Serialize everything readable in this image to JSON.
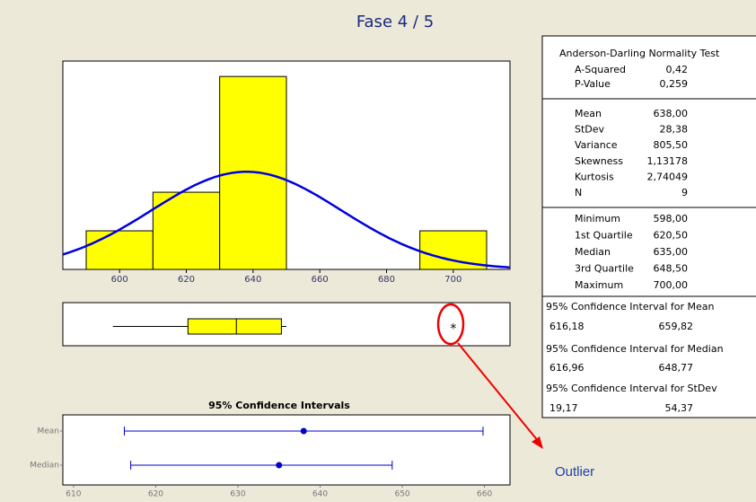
{
  "title": "Fase 4 / 5",
  "annotation": "Outlier",
  "chart_data": [
    {
      "type": "histogram",
      "bins": [
        590,
        610,
        630,
        650,
        670,
        690,
        710
      ],
      "counts": [
        1,
        2,
        5,
        0,
        0,
        1
      ],
      "color": "#ffff00",
      "xlim": [
        583,
        717
      ],
      "ylim": [
        0,
        5.4
      ],
      "xticks": [
        600,
        620,
        640,
        660,
        680,
        700
      ],
      "fit": {
        "mean": 638,
        "stdev": 28.38,
        "color": "#0000dd"
      }
    },
    {
      "type": "boxplot",
      "xlim": [
        583,
        717
      ],
      "whiskers": [
        598,
        650
      ],
      "q1": 620.5,
      "median": 635,
      "q3": 648.5,
      "outliers": [
        700
      ],
      "color": "#ffff00"
    },
    {
      "type": "interval",
      "title": "95% Confidence Intervals",
      "categories": [
        "Mean",
        "Median"
      ],
      "center": [
        638,
        635
      ],
      "low": [
        616.18,
        616.96
      ],
      "high": [
        659.82,
        648.77
      ],
      "color": "#0000cc",
      "xlim": [
        608.7,
        663.1
      ],
      "xticks": [
        610,
        620,
        630,
        640,
        650,
        660
      ]
    }
  ],
  "summary_table": {
    "header": "Anderson-Darling Normality Test",
    "sections": [
      {
        "rows": [
          [
            "A-Squared",
            "0,42"
          ],
          [
            "P-Value",
            "0,259"
          ]
        ]
      },
      {
        "rows": [
          [
            "Mean",
            "638,00"
          ],
          [
            "StDev",
            "28,38"
          ],
          [
            "Variance",
            "805,50"
          ],
          [
            "Skewness",
            "1,13178"
          ],
          [
            "Kurtosis",
            "2,74049"
          ],
          [
            "N",
            "9"
          ]
        ]
      },
      {
        "rows": [
          [
            "Minimum",
            "598,00"
          ],
          [
            "1st Quartile",
            "620,50"
          ],
          [
            "Median",
            "635,00"
          ],
          [
            "3rd Quartile",
            "648,50"
          ],
          [
            "Maximum",
            "700,00"
          ]
        ]
      }
    ],
    "intervals": [
      {
        "title": "95% Confidence Interval for Mean",
        "values": [
          "616,18",
          "659,82"
        ]
      },
      {
        "title": "95% Confidence Interval for Median",
        "values": [
          "616,96",
          "648,77"
        ]
      },
      {
        "title": "95% Confidence Interval for StDev",
        "values": [
          "19,17",
          "54,37"
        ]
      }
    ]
  }
}
